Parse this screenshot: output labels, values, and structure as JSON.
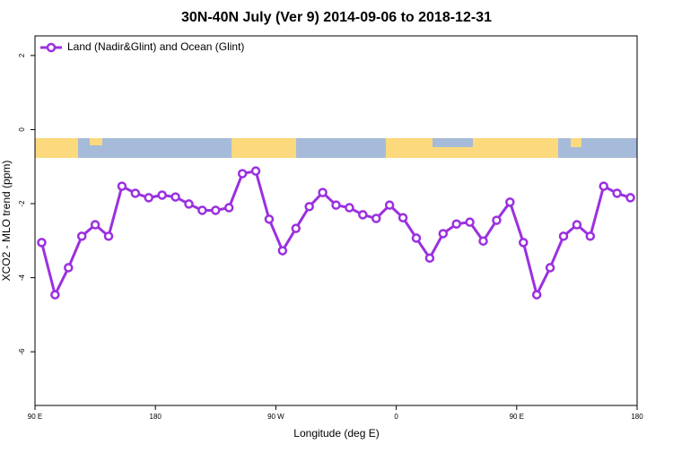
{
  "chart_data": {
    "type": "line",
    "title": "30N-40N July (Ver 9)   2014-09-06 to 2018-12-31",
    "x_label": "Longitude (deg E)",
    "y_label": "XCO2 - MLO trend (ppm)",
    "x": [
      95,
      105,
      115,
      125,
      135,
      145,
      155,
      165,
      175,
      185,
      195,
      205,
      215,
      225,
      235,
      245,
      255,
      265,
      275,
      285,
      295,
      305,
      315,
      325,
      335,
      345,
      355,
      365,
      375,
      385,
      395,
      405,
      415,
      425,
      435,
      445,
      455,
      465,
      475,
      485,
      495,
      505,
      515,
      525,
      535
    ],
    "series": [
      {
        "name": "Land (Nadir&Glint) and Ocean (Glint)",
        "color": "#9b30e0",
        "values": [
          -3.05,
          -4.46,
          -3.73,
          -2.88,
          -2.57,
          -2.88,
          -1.53,
          -1.72,
          -1.84,
          -1.77,
          -1.82,
          -2.01,
          -2.18,
          -2.18,
          -2.11,
          -1.19,
          -1.12,
          -2.42,
          -3.27,
          -2.67,
          -2.08,
          -1.7,
          -2.04,
          -2.11,
          -2.3,
          -2.4,
          -2.04,
          -2.38,
          -2.93,
          -3.47,
          -2.81,
          -2.55,
          -2.5,
          -3.01,
          -2.45,
          -1.96,
          -3.05,
          -4.46,
          -3.73,
          -2.88,
          -2.57,
          -2.88,
          -1.53,
          -1.72,
          -1.84
        ]
      }
    ],
    "xlim": [
      90,
      540
    ],
    "xticks": [
      {
        "value": 90,
        "label": "90 E"
      },
      {
        "value": 180,
        "label": "180"
      },
      {
        "value": 270,
        "label": "90 W"
      },
      {
        "value": 360,
        "label": "0"
      },
      {
        "value": 450,
        "label": "90 E"
      },
      {
        "value": 540,
        "label": "180"
      }
    ],
    "ylim": [
      -7.45,
      2.53
    ],
    "yticks": [
      2,
      0,
      -2,
      -4,
      -6
    ],
    "legend": "top-left"
  }
}
